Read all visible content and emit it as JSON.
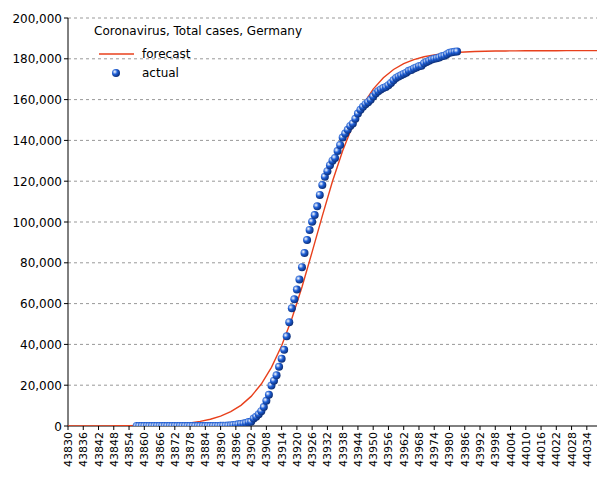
{
  "chart_data": {
    "type": "line",
    "title": "Coronavirus, Total cases, Germany",
    "legend": "upper left",
    "grid": true,
    "xlim": [
      43830,
      44038
    ],
    "xticks": [
      43830,
      43836,
      43842,
      43848,
      43854,
      43860,
      43866,
      43872,
      43878,
      43884,
      43890,
      43896,
      43902,
      43908,
      43914,
      43920,
      43926,
      43932,
      43938,
      43944,
      43950,
      43956,
      43962,
      43968,
      43974,
      43980,
      43986,
      43992,
      43998,
      44004,
      44010,
      44016,
      44022,
      44028,
      44034
    ],
    "ylim": [
      0,
      200000
    ],
    "yticks": [
      0,
      {
        "value": 20000,
        "label": "20,000"
      },
      {
        "value": 40000,
        "label": "40,000"
      },
      {
        "value": 60000,
        "label": "60,000"
      },
      {
        "value": 80000,
        "label": "80,000"
      },
      {
        "value": 100000,
        "label": "100,000"
      },
      {
        "value": 120000,
        "label": "120,000"
      },
      {
        "value": 140000,
        "label": "140,000"
      },
      {
        "value": 160000,
        "label": "160,000"
      },
      {
        "value": 180000,
        "label": "180,000"
      },
      {
        "value": 200000,
        "label": "200,000"
      }
    ],
    "series": [
      {
        "name": "forecast",
        "type": "line",
        "color": "#e8401c",
        "line_style": "solid",
        "x": [
          43830,
          43834,
          43838,
          43842,
          43846,
          43850,
          43854,
          43858,
          43862,
          43866,
          43870,
          43874,
          43878,
          43882,
          43886,
          43890,
          43894,
          43898,
          43902,
          43906,
          43910,
          43914,
          43918,
          43922,
          43926,
          43930,
          43934,
          43938,
          43942,
          43946,
          43950,
          43954,
          43958,
          43962,
          43966,
          43970,
          43974,
          43978,
          43982,
          43986,
          43990,
          43994,
          43998,
          44002,
          44006,
          44010,
          44014,
          44018,
          44022,
          44026,
          44030,
          44034,
          44038
        ],
        "values": [
          15,
          22,
          33,
          48,
          71,
          105,
          154,
          227,
          333,
          488,
          717,
          1053,
          1544,
          2263,
          3309,
          4823,
          7007,
          10121,
          14511,
          20559,
          28750,
          39367,
          52586,
          68173,
          85343,
          103023,
          119948,
          134947,
          147543,
          157521,
          165128,
          170735,
          174755,
          177622,
          179617,
          180996,
          181943,
          182596,
          183043,
          183347,
          183556,
          183698,
          183794,
          183860,
          183905,
          183935,
          183956,
          183970,
          183980,
          183986,
          183990,
          183993,
          183995
        ]
      },
      {
        "name": "actual",
        "type": "scatter",
        "color": "#1f5fd6",
        "marker": "circle",
        "x": [
          43857,
          43858,
          43859,
          43860,
          43861,
          43862,
          43863,
          43864,
          43865,
          43866,
          43867,
          43868,
          43869,
          43870,
          43871,
          43872,
          43873,
          43874,
          43875,
          43876,
          43877,
          43878,
          43879,
          43880,
          43881,
          43882,
          43883,
          43884,
          43885,
          43886,
          43887,
          43888,
          43889,
          43890,
          43891,
          43892,
          43893,
          43894,
          43895,
          43896,
          43897,
          43898,
          43899,
          43900,
          43901,
          43902,
          43903,
          43904,
          43905,
          43906,
          43907,
          43908,
          43909,
          43910,
          43911,
          43912,
          43913,
          43914,
          43915,
          43916,
          43917,
          43918,
          43919,
          43920,
          43921,
          43922,
          43923,
          43924,
          43925,
          43926,
          43927,
          43928,
          43929,
          43930,
          43931,
          43932,
          43933,
          43934,
          43935,
          43936,
          43937,
          43938,
          43939,
          43940,
          43941,
          43942,
          43943,
          43944,
          43945,
          43946,
          43947,
          43948,
          43949,
          43950,
          43951,
          43952,
          43953,
          43954,
          43955,
          43956,
          43957,
          43958,
          43959,
          43960,
          43961,
          43962,
          43963,
          43964,
          43965,
          43966,
          43967,
          43968,
          43969,
          43970,
          43971,
          43972,
          43973,
          43974,
          43975,
          43976,
          43977,
          43978,
          43979,
          43980,
          43981,
          43982,
          43983
        ],
        "values": [
          1,
          4,
          4,
          4,
          5,
          8,
          10,
          12,
          12,
          12,
          12,
          13,
          13,
          14,
          14,
          16,
          16,
          16,
          16,
          16,
          16,
          16,
          16,
          16,
          16,
          16,
          16,
          16,
          16,
          17,
          27,
          46,
          48,
          79,
          130,
          159,
          196,
          262,
          482,
          670,
          799,
          1040,
          1176,
          1457,
          1908,
          2078,
          3675,
          4585,
          5795,
          7272,
          9257,
          12327,
          15320,
          19848,
          22213,
          24873,
          29056,
          32986,
          37323,
          43938,
          50871,
          57695,
          62095,
          66885,
          71808,
          77872,
          84794,
          91159,
          96092,
          100123,
          103374,
          107663,
          113296,
          118181,
          122171,
          124908,
          127854,
          130072,
          131359,
          134753,
          137698,
          141397,
          143342,
          145184,
          147065,
          148291,
          150648,
          153129,
          154999,
          156513,
          157770,
          158758,
          159912,
          161539,
          163009,
          164077,
          164967,
          165664,
          166152,
          167007,
          168162,
          169430,
          170588,
          171324,
          171879,
          172576,
          173171,
          174098,
          174478,
          175233,
          175752,
          176369,
          176551,
          177778,
          178473,
          179021,
          179710,
          179986,
          180328,
          180600,
          181200,
          181524,
          182196,
          182922,
          183189,
          183410,
          183594
        ]
      }
    ]
  }
}
